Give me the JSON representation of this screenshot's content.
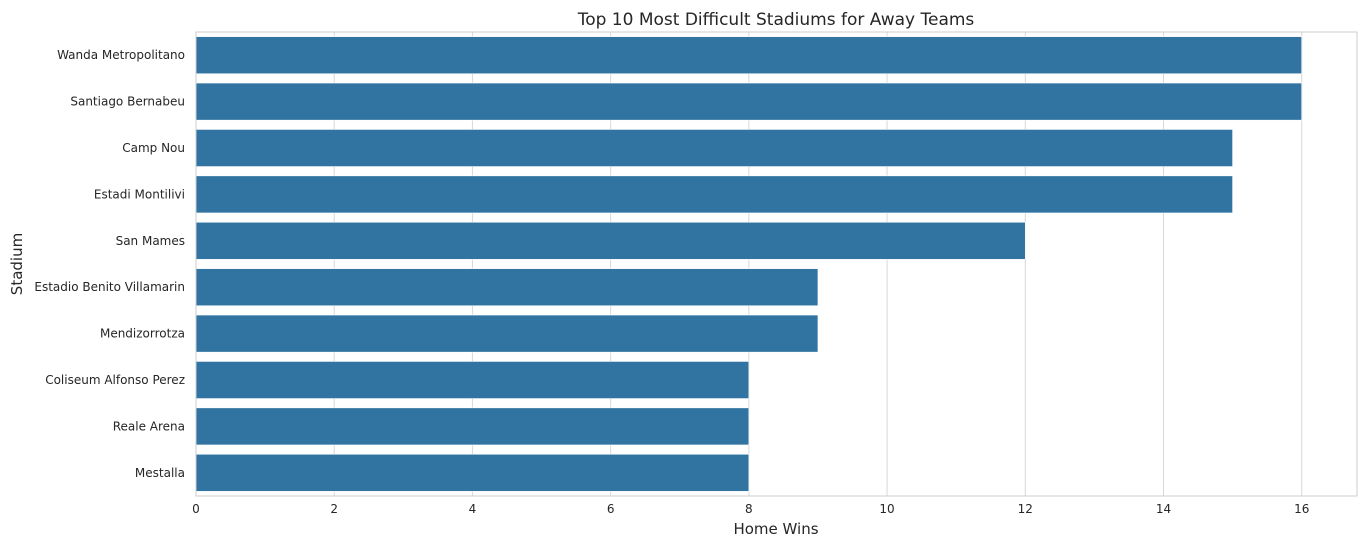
{
  "chart_data": {
    "type": "bar",
    "orientation": "horizontal",
    "title": "Top 10 Most Difficult Stadiums for Away Teams",
    "xlabel": "Home Wins",
    "ylabel": "Stadium",
    "categories": [
      "Wanda Metropolitano",
      "Santiago Bernabeu",
      "Camp Nou",
      "Estadi Montilivi",
      "San Mames",
      "Estadio Benito Villamarin",
      "Mendizorrotza",
      "Coliseum Alfonso Perez",
      "Reale Arena",
      "Mestalla"
    ],
    "values": [
      16,
      16,
      15,
      15,
      12,
      9,
      9,
      8,
      8,
      8
    ],
    "xlim": [
      0,
      16.8
    ],
    "xticks": [
      0,
      2,
      4,
      6,
      8,
      10,
      12,
      14,
      16
    ],
    "grid": true,
    "bar_color": "#3274a1"
  }
}
